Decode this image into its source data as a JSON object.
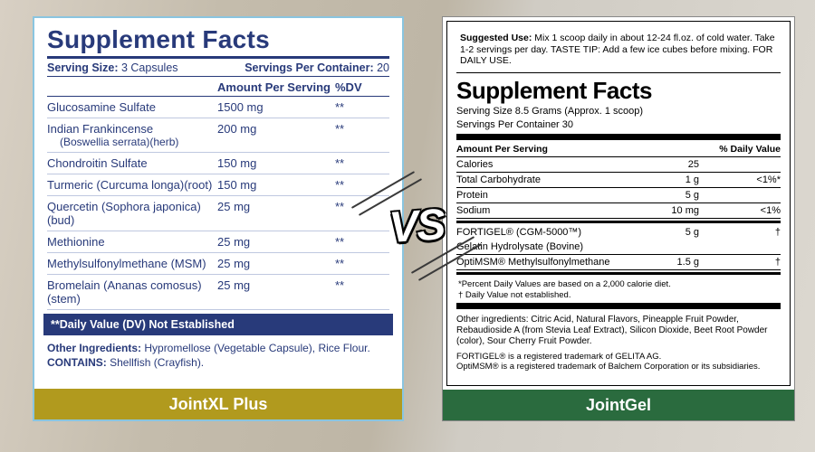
{
  "vs_text": "VS",
  "left": {
    "caption": "JointXL Plus",
    "caption_bg": "#b19a1e",
    "border_color": "#8ac5e0",
    "text_color": "#283a7a",
    "title": "Supplement Facts",
    "serving_size_label": "Serving Size:",
    "serving_size_value": "3 Capsules",
    "servings_per_label": "Servings Per Container:",
    "servings_per_value": "20",
    "header_amount": "Amount Per Serving",
    "header_dv": "%DV",
    "rows": [
      {
        "name": "Glucosamine Sulfate",
        "amount": "1500 mg",
        "dv": "**"
      },
      {
        "name": "Indian Frankincense",
        "sub": "(Boswellia serrata)(herb)",
        "amount": "200 mg",
        "dv": "**"
      },
      {
        "name": "Chondroitin Sulfate",
        "amount": "150 mg",
        "dv": "**"
      },
      {
        "name": "Turmeric (Curcuma longa)(root)",
        "amount": "150 mg",
        "dv": "**"
      },
      {
        "name": "Quercetin (Sophora japonica)(bud)",
        "amount": "25 mg",
        "dv": "**"
      },
      {
        "name": "Methionine",
        "amount": "25 mg",
        "dv": "**"
      },
      {
        "name": "Methylsulfonylmethane (MSM)",
        "amount": "25 mg",
        "dv": "**"
      },
      {
        "name": "Bromelain (Ananas comosus)(stem)",
        "amount": "25 mg",
        "dv": "**"
      }
    ],
    "dv_note": "**Daily Value (DV) Not Established",
    "other_label": "Other Ingredients:",
    "other_text": " Hypromellose (Vegetable Capsule), Rice Flour.",
    "contains_label": "CONTAINS:",
    "contains_text": " Shellfish (Crayfish)."
  },
  "right": {
    "caption": "JointGel",
    "caption_bg": "#2a6b3e",
    "suggested_label": "Suggested Use:",
    "suggested_text": " Mix 1 scoop daily in about 12-24 fl.oz. of cold water. Take 1-2 servings per day. TASTE TIP: Add a few ice cubes before mixing. FOR DAILY USE.",
    "title": "Supplement Facts",
    "serving_size": "Serving Size 8.5 Grams (Approx. 1 scoop)",
    "servings_per": "Servings Per Container 30",
    "header_amount": "Amount Per Serving",
    "header_dv": "% Daily Value",
    "rows_top": [
      {
        "name": "Calories",
        "amount": "25",
        "dv": ""
      },
      {
        "name": "Total Carbohydrate",
        "amount": "1 g",
        "dv": "<1%*"
      },
      {
        "name": "Protein",
        "amount": "5 g",
        "dv": ""
      },
      {
        "name": "Sodium",
        "amount": "10 mg",
        "dv": "<1%"
      }
    ],
    "rows_bot": [
      {
        "name": "FORTIGEL® (CGM-5000™)",
        "sub": "Gelatin Hydrolysate (Bovine)",
        "amount": "5 g",
        "dv": "†"
      },
      {
        "name": "OptiMSM® Methylsulfonylmethane",
        "amount": "1.5 g",
        "dv": "†"
      }
    ],
    "footnote1": "*Percent Daily Values are based on a 2,000 calorie diet.",
    "footnote2": "† Daily Value not established.",
    "other_label": "Other ingredients:",
    "other_text": " Citric Acid, Natural Flavors, Pineapple Fruit Powder, Rebaudioside A (from Stevia Leaf Extract), Silicon Dioxide, Beet Root Powder (color), Sour Cherry Fruit Powder.",
    "trademark1": "FORTIGEL® is a registered trademark of GELITA AG.",
    "trademark2": "OptiMSM® is a registered trademark of Balchem Corporation or its subsidiaries."
  }
}
